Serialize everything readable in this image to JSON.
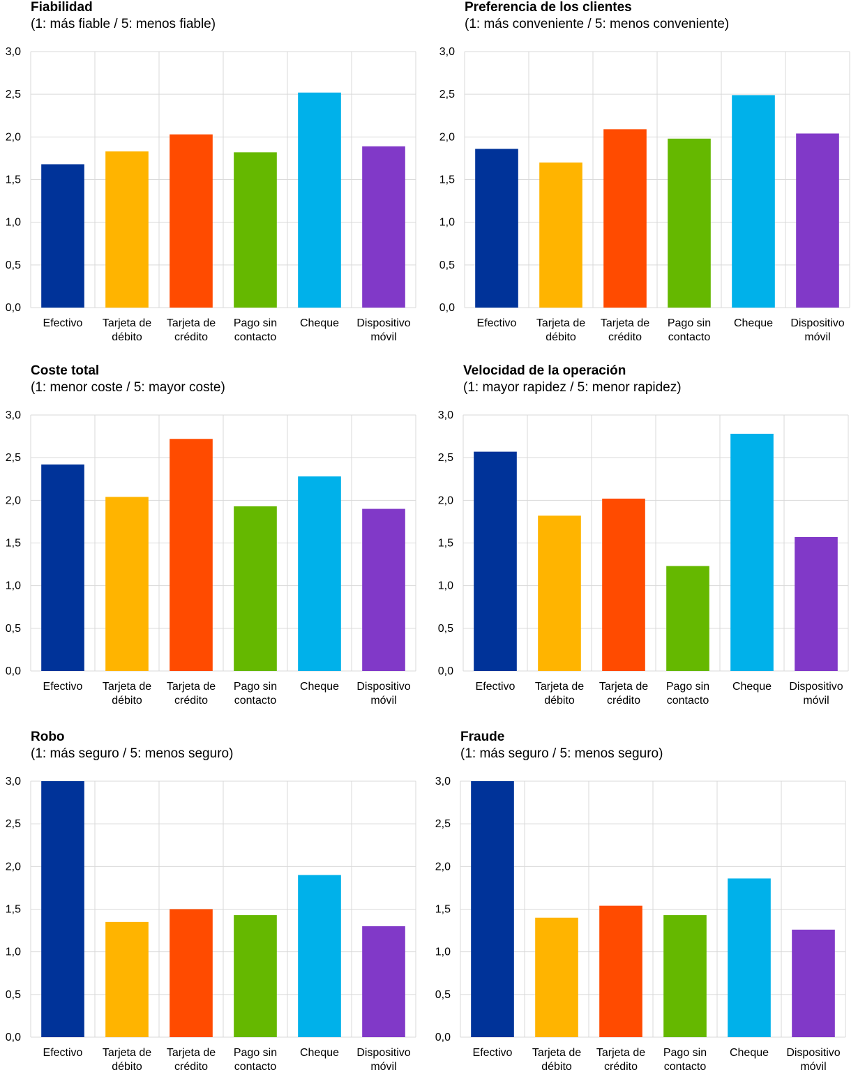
{
  "colors": [
    "#003399",
    "#ffb400",
    "#ff4b00",
    "#65b800",
    "#00b1ea",
    "#8139c8"
  ],
  "chart_data": [
    {
      "type": "bar",
      "title": "Fiabilidad",
      "subtitle": "(1: más fiable / 5: menos fiable)",
      "categories": [
        [
          "Efectivo"
        ],
        [
          "Tarjeta de",
          "débito"
        ],
        [
          "Tarjeta de",
          "crédito"
        ],
        [
          "Pago sin",
          "contacto"
        ],
        [
          "Cheque"
        ],
        [
          "Dispositivo",
          "móvil"
        ]
      ],
      "values": [
        1.68,
        1.83,
        2.03,
        1.82,
        2.52,
        1.89
      ],
      "ylim": [
        0,
        3
      ],
      "yticks": [
        "0,0",
        "0,5",
        "1,0",
        "1,5",
        "2,0",
        "2,5",
        "3,0"
      ],
      "grid": true
    },
    {
      "type": "bar",
      "title": "Preferencia de los clientes",
      "subtitle": "(1: más conveniente  / 5: menos conveniente)",
      "categories": [
        [
          "Efectivo"
        ],
        [
          "Tarjeta de",
          "débito"
        ],
        [
          "Tarjeta de",
          "crédito"
        ],
        [
          "Pago sin",
          "contacto"
        ],
        [
          "Cheque"
        ],
        [
          "Dispositivo",
          "móvil"
        ]
      ],
      "values": [
        1.86,
        1.7,
        2.09,
        1.98,
        2.49,
        2.04
      ],
      "ylim": [
        0,
        3
      ],
      "yticks": [
        "0,0",
        "0,5",
        "1,0",
        "1,5",
        "2,0",
        "2,5",
        "3,0"
      ],
      "grid": true
    },
    {
      "type": "bar",
      "title": "Coste total",
      "subtitle": "(1: menor coste / 5: mayor coste)",
      "categories": [
        [
          "Efectivo"
        ],
        [
          "Tarjeta de",
          "débito"
        ],
        [
          "Tarjeta de",
          "crédito"
        ],
        [
          "Pago sin",
          "contacto"
        ],
        [
          "Cheque"
        ],
        [
          "Dispositivo",
          "móvil"
        ]
      ],
      "values": [
        2.42,
        2.04,
        2.72,
        1.93,
        2.28,
        1.9
      ],
      "ylim": [
        0,
        3
      ],
      "yticks": [
        "0,0",
        "0,5",
        "1,0",
        "1,5",
        "2,0",
        "2,5",
        "3,0"
      ],
      "grid": true
    },
    {
      "type": "bar",
      "title": "Velocidad de la operación",
      "subtitle": "(1: mayor rapidez / 5: menor rapidez)",
      "categories": [
        [
          "Efectivo"
        ],
        [
          "Tarjeta de",
          "débito"
        ],
        [
          "Tarjeta de",
          "crédito"
        ],
        [
          "Pago sin",
          "contacto"
        ],
        [
          "Cheque"
        ],
        [
          "Dispositivo",
          "móvil"
        ]
      ],
      "values": [
        2.57,
        1.82,
        2.02,
        1.23,
        2.78,
        1.57
      ],
      "ylim": [
        0,
        3
      ],
      "yticks": [
        "0,0",
        "0,5",
        "1,0",
        "1,5",
        "2,0",
        "2,5",
        "3,0"
      ],
      "grid": true
    },
    {
      "type": "bar",
      "title": "Robo",
      "subtitle": "(1: más seguro / 5: menos seguro)",
      "categories": [
        [
          "Efectivo"
        ],
        [
          "Tarjeta de",
          "débito"
        ],
        [
          "Tarjeta de",
          "crédito"
        ],
        [
          "Pago sin",
          "contacto"
        ],
        [
          "Cheque"
        ],
        [
          "Dispositivo",
          "móvil"
        ]
      ],
      "values": [
        3.0,
        1.35,
        1.5,
        1.43,
        1.9,
        1.3
      ],
      "ylim": [
        0,
        3
      ],
      "yticks": [
        "0,0",
        "0,5",
        "1,0",
        "1,5",
        "2,0",
        "2,5",
        "3,0"
      ],
      "grid": true
    },
    {
      "type": "bar",
      "title": "Fraude",
      "subtitle": "(1: más seguro / 5: menos seguro)",
      "categories": [
        [
          "Efectivo"
        ],
        [
          "Tarjeta de",
          "débito"
        ],
        [
          "Tarjeta de",
          "crédito"
        ],
        [
          "Pago sin",
          "contacto"
        ],
        [
          "Cheque"
        ],
        [
          "Dispositivo",
          "móvil"
        ]
      ],
      "values": [
        3.0,
        1.4,
        1.54,
        1.43,
        1.86,
        1.26
      ],
      "ylim": [
        0,
        3
      ],
      "yticks": [
        "0,0",
        "0,5",
        "1,0",
        "1,5",
        "2,0",
        "2,5",
        "3,0"
      ],
      "grid": true
    }
  ]
}
